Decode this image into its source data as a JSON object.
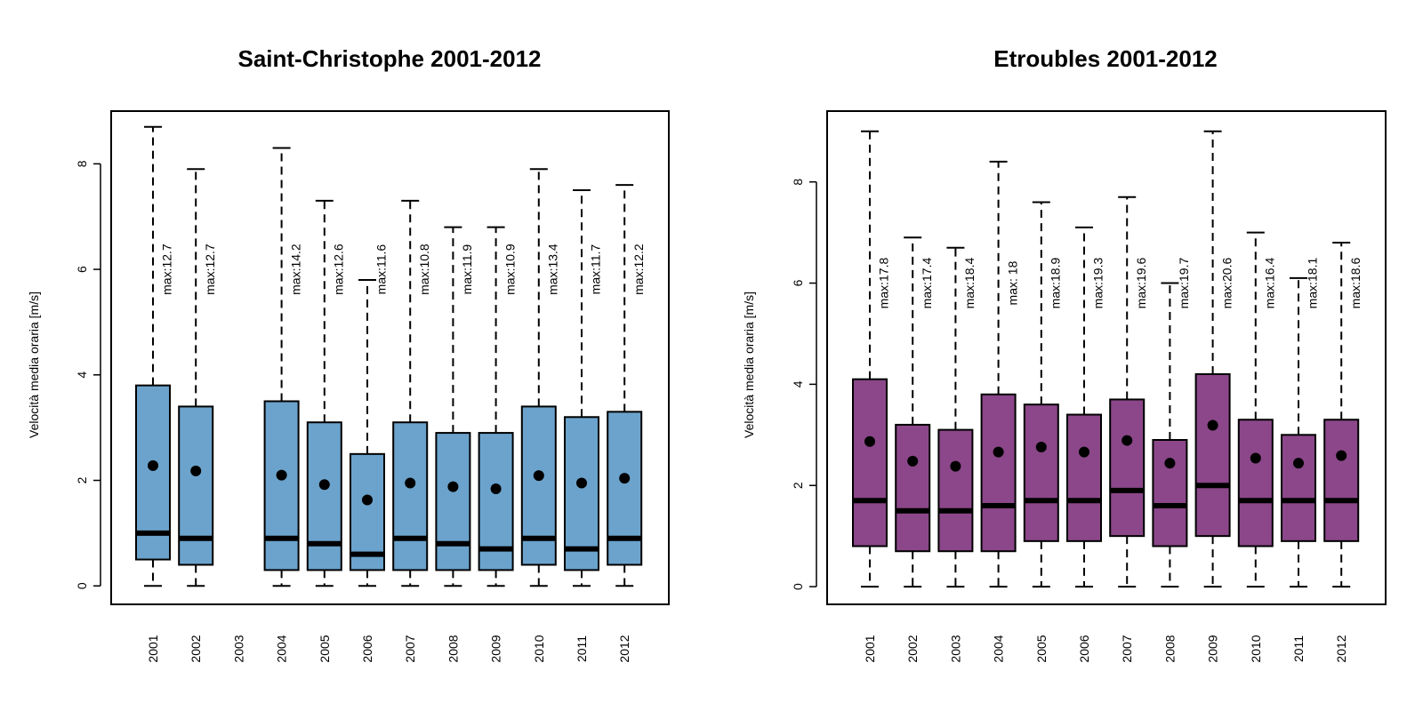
{
  "chart_data": [
    {
      "type": "boxplot",
      "title": "Saint-Christophe 2001-2012",
      "ylabel": "Velocità media oraria [m/s]",
      "xlabel": "",
      "ylim": [
        -0.35,
        9.0
      ],
      "yticks": [
        0,
        2,
        4,
        6,
        8
      ],
      "color": "#6ba3cc",
      "categories": [
        "2001",
        "2002",
        "2003",
        "2004",
        "2005",
        "2006",
        "2007",
        "2008",
        "2009",
        "2010",
        "2011",
        "2012"
      ],
      "boxes": [
        {
          "year": "2001",
          "min": 0,
          "q1": 0.5,
          "median": 1.0,
          "q3": 3.8,
          "whisker_max": 8.7,
          "mean": 2.28,
          "max_label": "max:12.7"
        },
        {
          "year": "2002",
          "min": 0,
          "q1": 0.4,
          "median": 0.9,
          "q3": 3.4,
          "whisker_max": 7.9,
          "mean": 2.18,
          "max_label": "max:12.7"
        },
        null,
        {
          "year": "2004",
          "min": 0,
          "q1": 0.3,
          "median": 0.9,
          "q3": 3.5,
          "whisker_max": 8.3,
          "mean": 2.1,
          "max_label": "max:14.2"
        },
        {
          "year": "2005",
          "min": 0,
          "q1": 0.3,
          "median": 0.8,
          "q3": 3.1,
          "whisker_max": 7.3,
          "mean": 1.92,
          "max_label": "max:12.6"
        },
        {
          "year": "2006",
          "min": 0,
          "q1": 0.3,
          "median": 0.6,
          "q3": 2.5,
          "whisker_max": 5.8,
          "mean": 1.63,
          "max_label": "max:11.6"
        },
        {
          "year": "2007",
          "min": 0,
          "q1": 0.3,
          "median": 0.9,
          "q3": 3.1,
          "whisker_max": 7.3,
          "mean": 1.95,
          "max_label": "max:10.8"
        },
        {
          "year": "2008",
          "min": 0,
          "q1": 0.3,
          "median": 0.8,
          "q3": 2.9,
          "whisker_max": 6.8,
          "mean": 1.88,
          "max_label": "max:11.9"
        },
        {
          "year": "2009",
          "min": 0,
          "q1": 0.3,
          "median": 0.7,
          "q3": 2.9,
          "whisker_max": 6.8,
          "mean": 1.84,
          "max_label": "max:10.9"
        },
        {
          "year": "2010",
          "min": 0,
          "q1": 0.4,
          "median": 0.9,
          "q3": 3.4,
          "whisker_max": 7.9,
          "mean": 2.09,
          "max_label": "max:13.4"
        },
        {
          "year": "2011",
          "min": 0,
          "q1": 0.3,
          "median": 0.7,
          "q3": 3.2,
          "whisker_max": 7.5,
          "mean": 1.95,
          "max_label": "max:11.7"
        },
        {
          "year": "2012",
          "min": 0,
          "q1": 0.4,
          "median": 0.9,
          "q3": 3.3,
          "whisker_max": 7.6,
          "mean": 2.04,
          "max_label": "max:12.2"
        }
      ]
    },
    {
      "type": "boxplot",
      "title": "Etroubles 2001-2012",
      "ylabel": "Velocità media oraria [m/s]",
      "xlabel": "",
      "ylim": [
        -0.35,
        9.4
      ],
      "yticks": [
        0,
        2,
        4,
        6,
        8
      ],
      "color": "#8b4789",
      "categories": [
        "2001",
        "2002",
        "2003",
        "2004",
        "2005",
        "2006",
        "2007",
        "2008",
        "2009",
        "2010",
        "2011",
        "2012"
      ],
      "boxes": [
        {
          "year": "2001",
          "min": 0,
          "q1": 0.8,
          "median": 1.7,
          "q3": 4.1,
          "whisker_max": 9.0,
          "mean": 2.87,
          "max_label": "max:17.8"
        },
        {
          "year": "2002",
          "min": 0,
          "q1": 0.7,
          "median": 1.5,
          "q3": 3.2,
          "whisker_max": 6.9,
          "mean": 2.48,
          "max_label": "max:17.4"
        },
        {
          "year": "2003",
          "min": 0,
          "q1": 0.7,
          "median": 1.5,
          "q3": 3.1,
          "whisker_max": 6.7,
          "mean": 2.38,
          "max_label": "max:18.4"
        },
        {
          "year": "2004",
          "min": 0,
          "q1": 0.7,
          "median": 1.6,
          "q3": 3.8,
          "whisker_max": 8.4,
          "mean": 2.66,
          "max_label": "max:  18"
        },
        {
          "year": "2005",
          "min": 0,
          "q1": 0.9,
          "median": 1.7,
          "q3": 3.6,
          "whisker_max": 7.6,
          "mean": 2.76,
          "max_label": "max:18.9"
        },
        {
          "year": "2006",
          "min": 0,
          "q1": 0.9,
          "median": 1.7,
          "q3": 3.4,
          "whisker_max": 7.1,
          "mean": 2.66,
          "max_label": "max:19.3"
        },
        {
          "year": "2007",
          "min": 0,
          "q1": 1.0,
          "median": 1.9,
          "q3": 3.7,
          "whisker_max": 7.7,
          "mean": 2.89,
          "max_label": "max:19.6"
        },
        {
          "year": "2008",
          "min": 0,
          "q1": 0.8,
          "median": 1.6,
          "q3": 2.9,
          "whisker_max": 6.0,
          "mean": 2.44,
          "max_label": "max:19.7"
        },
        {
          "year": "2009",
          "min": 0,
          "q1": 1.0,
          "median": 2.0,
          "q3": 4.2,
          "whisker_max": 9.0,
          "mean": 3.19,
          "max_label": "max:20.6"
        },
        {
          "year": "2010",
          "min": 0,
          "q1": 0.8,
          "median": 1.7,
          "q3": 3.3,
          "whisker_max": 7.0,
          "mean": 2.54,
          "max_label": "max:16.4"
        },
        {
          "year": "2011",
          "min": 0,
          "q1": 0.9,
          "median": 1.7,
          "q3": 3.0,
          "whisker_max": 6.1,
          "mean": 2.44,
          "max_label": "max:18.1"
        },
        {
          "year": "2012",
          "min": 0,
          "q1": 0.9,
          "median": 1.7,
          "q3": 3.3,
          "whisker_max": 6.8,
          "mean": 2.59,
          "max_label": "max:18.6"
        }
      ]
    }
  ]
}
